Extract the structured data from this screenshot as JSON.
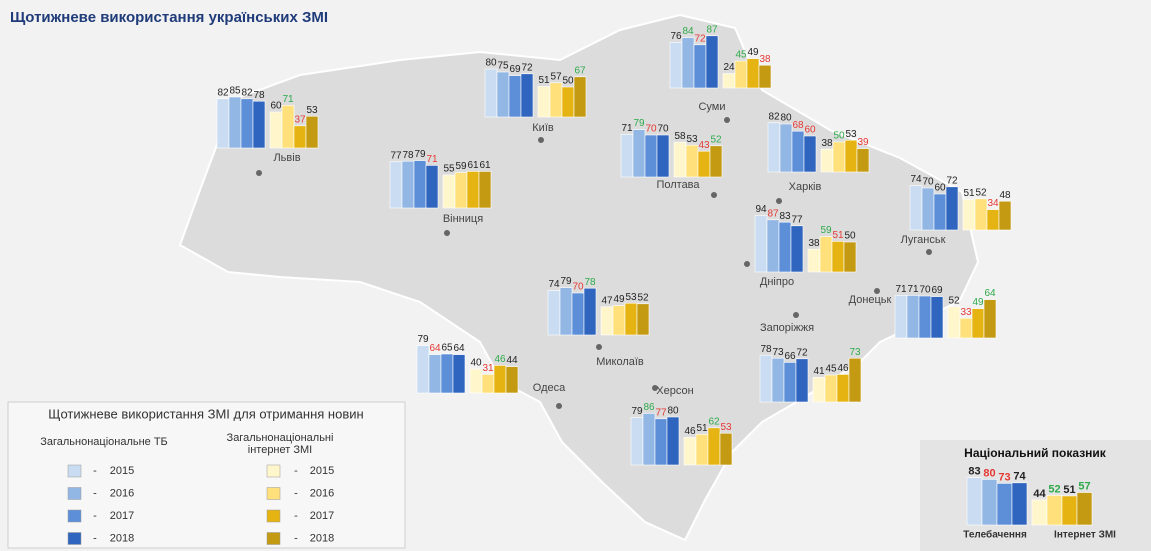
{
  "chart_data": {
    "type": "bar",
    "title": "Щотижневе використання українських ЗМІ",
    "legend_title": "Щотижневе використання ЗМІ для отримання новин",
    "legend_separator": "-",
    "years": [
      "2015",
      "2016",
      "2017",
      "2018"
    ],
    "groups": [
      {
        "name": "Загальнонаціональне ТБ",
        "colors": [
          "#c9dcf1",
          "#93b7e4",
          "#5c8fd8",
          "#2f64bf"
        ]
      },
      {
        "name": "Загальнонаціональні інтернет ЗМІ",
        "colors": [
          "#fff6cc",
          "#ffe07a",
          "#e6b412",
          "#c39a12"
        ]
      }
    ],
    "regions": [
      {
        "name": "Львів",
        "tv": {
          "values": [
            82,
            85,
            82,
            78
          ],
          "label_colors": [
            "#222222",
            "#222222",
            "#222222",
            "#222222"
          ]
        },
        "web": {
          "values": [
            60,
            71,
            37,
            53
          ],
          "label_colors": [
            "#222222",
            "#2eaa4a",
            "#e53935",
            "#222222"
          ]
        }
      },
      {
        "name": "Київ",
        "tv": {
          "values": [
            80,
            75,
            69,
            72
          ],
          "label_colors": [
            "#222222",
            "#222222",
            "#222222",
            "#222222"
          ]
        },
        "web": {
          "values": [
            51,
            57,
            50,
            67
          ],
          "label_colors": [
            "#222222",
            "#222222",
            "#222222",
            "#2eaa4a"
          ]
        }
      },
      {
        "name": "Суми",
        "tv": {
          "values": [
            76,
            84,
            72,
            87
          ],
          "label_colors": [
            "#222222",
            "#2eaa4a",
            "#e53935",
            "#2eaa4a"
          ]
        },
        "web": {
          "values": [
            24,
            45,
            49,
            38
          ],
          "label_colors": [
            "#222222",
            "#2eaa4a",
            "#222222",
            "#e53935"
          ]
        }
      },
      {
        "name": "Вінниця",
        "tv": {
          "values": [
            77,
            78,
            79,
            71
          ],
          "label_colors": [
            "#222222",
            "#222222",
            "#222222",
            "#e53935"
          ]
        },
        "web": {
          "values": [
            55,
            59,
            61,
            61
          ],
          "label_colors": [
            "#222222",
            "#222222",
            "#222222",
            "#222222"
          ]
        }
      },
      {
        "name": "Полтава",
        "tv": {
          "values": [
            71,
            79,
            70,
            70
          ],
          "label_colors": [
            "#222222",
            "#2eaa4a",
            "#e53935",
            "#222222"
          ]
        },
        "web": {
          "values": [
            58,
            53,
            43,
            52
          ],
          "label_colors": [
            "#222222",
            "#222222",
            "#e53935",
            "#2eaa4a"
          ]
        }
      },
      {
        "name": "Харків",
        "tv": {
          "values": [
            82,
            80,
            68,
            60
          ],
          "label_colors": [
            "#222222",
            "#222222",
            "#e53935",
            "#e53935"
          ]
        },
        "web": {
          "values": [
            38,
            50,
            53,
            39
          ],
          "label_colors": [
            "#222222",
            "#2eaa4a",
            "#222222",
            "#e53935"
          ]
        }
      },
      {
        "name": "Луганськ",
        "tv": {
          "values": [
            74,
            70,
            60,
            72
          ],
          "label_colors": [
            "#222222",
            "#222222",
            "#222222",
            "#222222"
          ]
        },
        "web": {
          "values": [
            51,
            52,
            34,
            48
          ],
          "label_colors": [
            "#222222",
            "#222222",
            "#e53935",
            "#222222"
          ]
        }
      },
      {
        "name": "Дніпро",
        "tv": {
          "values": [
            94,
            87,
            83,
            77
          ],
          "label_colors": [
            "#222222",
            "#e53935",
            "#222222",
            "#222222"
          ]
        },
        "web": {
          "values": [
            38,
            59,
            51,
            50
          ],
          "label_colors": [
            "#222222",
            "#2eaa4a",
            "#e53935",
            "#222222"
          ]
        }
      },
      {
        "name": "Донецьк",
        "tv": {
          "values": [
            71,
            71,
            70,
            69
          ],
          "label_colors": [
            "#222222",
            "#222222",
            "#222222",
            "#222222"
          ]
        },
        "web": {
          "values": [
            52,
            33,
            49,
            64
          ],
          "label_colors": [
            "#222222",
            "#e53935",
            "#2eaa4a",
            "#2eaa4a"
          ]
        }
      },
      {
        "name": "Запоріжжя",
        "tv": {
          "values": [
            78,
            73,
            66,
            72
          ],
          "label_colors": [
            "#222222",
            "#222222",
            "#222222",
            "#222222"
          ]
        },
        "web": {
          "values": [
            41,
            45,
            46,
            73
          ],
          "label_colors": [
            "#222222",
            "#222222",
            "#222222",
            "#2eaa4a"
          ]
        }
      },
      {
        "name": "Миколаїв",
        "tv": {
          "values": [
            74,
            79,
            70,
            78
          ],
          "label_colors": [
            "#222222",
            "#222222",
            "#e53935",
            "#2eaa4a"
          ]
        },
        "web": {
          "values": [
            47,
            49,
            53,
            52
          ],
          "label_colors": [
            "#222222",
            "#222222",
            "#222222",
            "#222222"
          ]
        }
      },
      {
        "name": "Одеса",
        "tv": {
          "values": [
            79,
            64,
            65,
            64
          ],
          "label_colors": [
            "#222222",
            "#e53935",
            "#222222",
            "#222222"
          ]
        },
        "web": {
          "values": [
            40,
            31,
            46,
            44
          ],
          "label_colors": [
            "#222222",
            "#e53935",
            "#2eaa4a",
            "#222222"
          ]
        }
      },
      {
        "name": "Херсон",
        "tv": {
          "values": [
            79,
            86,
            77,
            80
          ],
          "label_colors": [
            "#222222",
            "#2eaa4a",
            "#e53935",
            "#222222"
          ]
        },
        "web": {
          "values": [
            46,
            51,
            62,
            53
          ],
          "label_colors": [
            "#222222",
            "#222222",
            "#2eaa4a",
            "#e53935"
          ]
        }
      }
    ],
    "national": {
      "title": "Національний показник",
      "tv_label": "Телебачення",
      "web_label": "Інтернет ЗМІ",
      "tv": {
        "values": [
          83,
          80,
          73,
          74
        ],
        "label_colors": [
          "#222222",
          "#e53935",
          "#e53935",
          "#222222"
        ]
      },
      "web": {
        "values": [
          44,
          52,
          51,
          57
        ],
        "label_colors": [
          "#222222",
          "#2eaa4a",
          "#222222",
          "#2eaa4a"
        ]
      }
    }
  }
}
